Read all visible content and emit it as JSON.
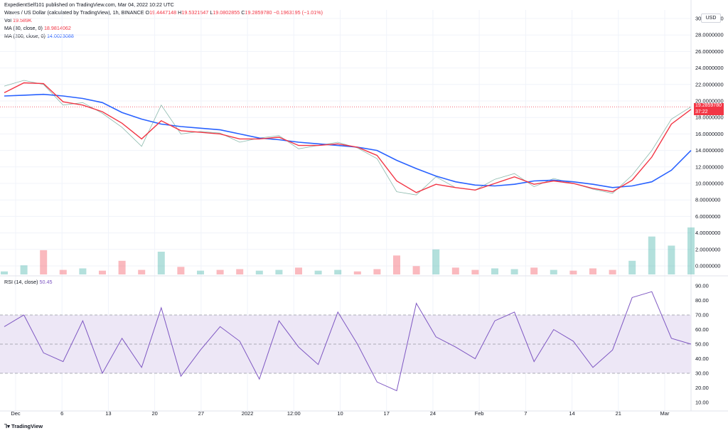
{
  "header": {
    "published": "ExpedientSelf101 published on TradingView.com, Mar 04, 2022 10:22 UTC",
    "symbol": "Waves / US Dollar (calculated by TradingView), 1h, BINANCE",
    "o_label": "O",
    "o_value": "19.4447148",
    "h_label": "H",
    "h_value": "19.5321547",
    "l_label": "L",
    "l_value": "19.0802855",
    "c_label": "C",
    "c_value": "19.2859780",
    "change": "−0.1963195 (−1.01%)",
    "vol_label": "Vol",
    "vol_value": "19.589K",
    "ma30_label": "MA (30, close, 0)",
    "ma30_value": "18.9814062",
    "ma200_label": "MA (200, close, 0)",
    "ma200_value": "14.0023088",
    "rsi_label": "RSI (14, close)",
    "rsi_value": "50.45"
  },
  "currency_badge": "USD",
  "price_tag": {
    "price": "19.2859780",
    "countdown": "37:22"
  },
  "logo": "TradingView",
  "colors": {
    "up": "#26a69a",
    "down": "#f23645",
    "ma30": "#f23645",
    "ma200": "#2962ff",
    "rsi": "#7e57c2",
    "rsi_band": "#ede7f6"
  },
  "chart_data": [
    {
      "type": "candlestick",
      "title": "Waves / US Dollar (calculated by TradingView), 1h, BINANCE",
      "y_ticks": [
        "30.0000000",
        "28.0000000",
        "26.0000000",
        "24.0000000",
        "22.0000000",
        "20.0000000",
        "18.0000000",
        "16.0000000",
        "14.0000000",
        "12.0000000",
        "10.0000000",
        "8.0000000",
        "6.0000000",
        "4.0000000",
        "2.0000000",
        "0.0000000"
      ],
      "ylim": [
        0,
        31
      ],
      "x_ticks": [
        "Dec",
        "6",
        "13",
        "20",
        "27",
        "2022",
        "12:00",
        "10",
        "17",
        "24",
        "Feb",
        "7",
        "14",
        "21",
        "Mar"
      ],
      "price_x": [
        "Dec 1",
        "Dec 3",
        "Dec 4",
        "Dec 5",
        "Dec 7",
        "Dec 10",
        "Dec 12",
        "Dec 14",
        "Dec 17",
        "Dec 20",
        "Dec 24",
        "Dec 27",
        "Dec 30",
        "Jan 2",
        "Jan 5",
        "Jan 8",
        "Jan 12",
        "Jan 15",
        "Jan 18",
        "Jan 21",
        "Jan 23",
        "Jan 25",
        "Jan 27",
        "Jan 31",
        "Feb 3",
        "Feb 7",
        "Feb 10",
        "Feb 13",
        "Feb 16",
        "Feb 19",
        "Feb 22",
        "Feb 24",
        "Feb 26",
        "Feb 28",
        "Mar 2",
        "Mar 4"
      ],
      "close": [
        21.8,
        22.5,
        22.0,
        19.5,
        19.8,
        18.5,
        16.8,
        14.5,
        19.5,
        16.0,
        16.3,
        16.1,
        15.0,
        15.5,
        15.8,
        14.2,
        14.6,
        15.0,
        14.3,
        13.0,
        9.0,
        8.6,
        10.8,
        9.5,
        9.2,
        10.5,
        11.2,
        9.6,
        10.6,
        10.0,
        9.3,
        8.8,
        11.0,
        14.0,
        17.8,
        19.29
      ],
      "ma30": [
        21.0,
        22.2,
        22.1,
        19.9,
        19.5,
        18.7,
        17.3,
        15.4,
        17.6,
        16.4,
        16.2,
        16.0,
        15.4,
        15.4,
        15.6,
        14.6,
        14.6,
        14.8,
        14.4,
        13.4,
        10.3,
        8.9,
        9.9,
        9.5,
        9.2,
        10.0,
        10.8,
        9.9,
        10.3,
        10.0,
        9.4,
        9.0,
        10.4,
        13.2,
        17.2,
        18.98
      ],
      "ma200": [
        20.6,
        20.7,
        20.8,
        20.6,
        20.3,
        19.8,
        18.6,
        17.8,
        17.2,
        16.9,
        16.7,
        16.5,
        16.0,
        15.5,
        15.3,
        15.0,
        14.8,
        14.6,
        14.4,
        14.0,
        12.8,
        11.8,
        10.9,
        10.2,
        9.8,
        9.7,
        9.9,
        10.3,
        10.4,
        10.2,
        9.9,
        9.5,
        9.7,
        10.2,
        11.6,
        14.0
      ],
      "price_line": 19.285978
    },
    {
      "type": "bar",
      "name": "Vol",
      "ylim": [
        0,
        9
      ],
      "values_million": [
        0.4,
        1.2,
        3.2,
        0.6,
        0.8,
        0.5,
        1.8,
        0.6,
        3.0,
        1.0,
        0.5,
        0.6,
        0.7,
        0.5,
        0.6,
        0.9,
        0.5,
        0.6,
        0.4,
        0.7,
        2.5,
        1.1,
        3.3,
        0.9,
        0.6,
        0.8,
        0.7,
        0.9,
        0.6,
        0.5,
        0.8,
        0.6,
        1.8,
        5.0,
        3.8,
        6.2
      ]
    },
    {
      "type": "line",
      "name": "RSI (14, close)",
      "y_ticks": [
        "90.00",
        "80.00",
        "70.00",
        "60.00",
        "50.00",
        "40.00",
        "30.00",
        "20.00",
        "10.00"
      ],
      "ylim": [
        5,
        92
      ],
      "bands": [
        30,
        50,
        70
      ],
      "values": [
        62,
        70,
        44,
        38,
        66,
        30,
        54,
        34,
        75,
        28,
        46,
        62,
        52,
        26,
        66,
        48,
        36,
        72,
        50,
        24,
        18,
        78,
        55,
        48,
        40,
        66,
        72,
        38,
        60,
        52,
        34,
        46,
        82,
        86,
        54,
        50
      ]
    }
  ]
}
